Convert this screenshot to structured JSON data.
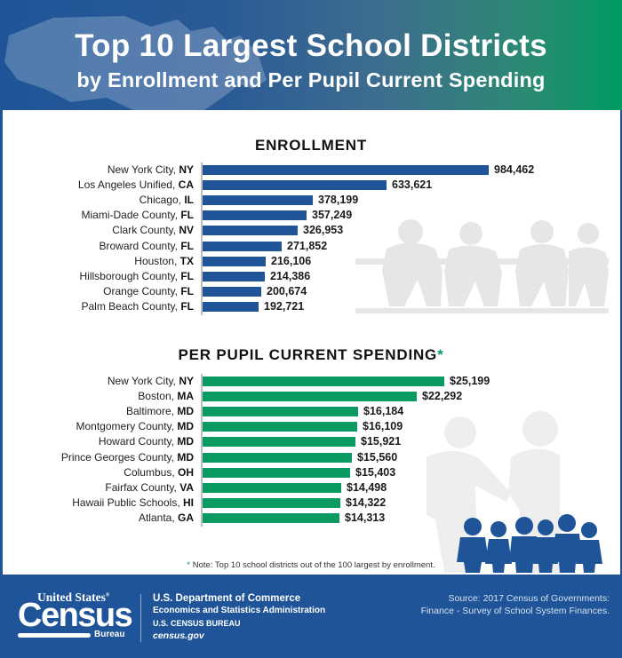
{
  "header": {
    "title": "Top 10 Largest School Districts",
    "subtitle": "by Enrollment and Per Pupil Current Spending"
  },
  "enrollment": {
    "title": "ENROLLMENT",
    "bar_color": "#1f5598",
    "rows": [
      {
        "name": "New York City, ",
        "state": "NY",
        "value": 984462,
        "display": "984,462"
      },
      {
        "name": "Los Angeles Unified, ",
        "state": "CA",
        "value": 633621,
        "display": "633,621"
      },
      {
        "name": "Chicago, ",
        "state": "IL",
        "value": 378199,
        "display": "378,199"
      },
      {
        "name": "Miami-Dade County, ",
        "state": "FL",
        "value": 357249,
        "display": "357,249"
      },
      {
        "name": "Clark County, ",
        "state": "NV",
        "value": 326953,
        "display": "326,953"
      },
      {
        "name": "Broward County, ",
        "state": "FL",
        "value": 271852,
        "display": "271,852"
      },
      {
        "name": "Houston, ",
        "state": "TX",
        "value": 216106,
        "display": "216,106"
      },
      {
        "name": "Hillsborough County, ",
        "state": "FL",
        "value": 214386,
        "display": "214,386"
      },
      {
        "name": "Orange County, ",
        "state": "FL",
        "value": 200674,
        "display": "200,674"
      },
      {
        "name": "Palm Beach County, ",
        "state": "FL",
        "value": 192721,
        "display": "192,721"
      }
    ]
  },
  "spending": {
    "title": "PER PUPIL CURRENT SPENDING",
    "asterisk": "*",
    "bar_color": "#0a9a62",
    "rows": [
      {
        "name": "New York City, ",
        "state": "NY",
        "value": 25199,
        "display": "$25,199"
      },
      {
        "name": "Boston, ",
        "state": "MA",
        "value": 22292,
        "display": "$22,292"
      },
      {
        "name": "Baltimore, ",
        "state": "MD",
        "value": 16184,
        "display": "$16,184"
      },
      {
        "name": "Montgomery County, ",
        "state": "MD",
        "value": 16109,
        "display": "$16,109"
      },
      {
        "name": "Howard County, ",
        "state": "MD",
        "value": 15921,
        "display": "$15,921"
      },
      {
        "name": "Prince Georges County, ",
        "state": "MD",
        "value": 15560,
        "display": "$15,560"
      },
      {
        "name": "Columbus, ",
        "state": "OH",
        "value": 15403,
        "display": "$15,403"
      },
      {
        "name": "Fairfax County, ",
        "state": "VA",
        "value": 14498,
        "display": "$14,498"
      },
      {
        "name": "Hawaii Public Schools, ",
        "state": "HI",
        "value": 14322,
        "display": "$14,322"
      },
      {
        "name": "Atlanta, ",
        "state": "GA",
        "value": 14313,
        "display": "$14,313"
      }
    ]
  },
  "note": {
    "asterisk": "*",
    "text": " Note: Top 10 school districts out of the 100 largest by enrollment."
  },
  "footer": {
    "logo_top": "United States",
    "logo_reg": "®",
    "logo_main": "Census",
    "logo_bottom": "Bureau",
    "dept_line1": "U.S. Department of Commerce",
    "dept_line2": "Economics and Statistics Administration",
    "dept_line3": "U.S. CENSUS BUREAU",
    "dept_line4": "census.gov",
    "source_line1": "Source: 2017 Census of Governments:",
    "source_line2": "Finance - Survey of School System Finances."
  },
  "colors": {
    "header_start": "#1f5598",
    "header_end": "#009a62",
    "enrollment_bar": "#1f5598",
    "spending_bar": "#0a9a62",
    "footer_bg": "#1f5598"
  },
  "chart_data": [
    {
      "type": "bar",
      "orientation": "horizontal",
      "title": "ENROLLMENT",
      "categories": [
        "New York City, NY",
        "Los Angeles Unified, CA",
        "Chicago, IL",
        "Miami-Dade County, FL",
        "Clark County, NV",
        "Broward County, FL",
        "Houston, TX",
        "Hillsborough County, FL",
        "Orange County, FL",
        "Palm Beach County, FL"
      ],
      "values": [
        984462,
        633621,
        378199,
        357249,
        326953,
        271852,
        216106,
        214386,
        200674,
        192721
      ],
      "xlabel": "",
      "ylabel": "",
      "data_labels": true,
      "grid": false
    },
    {
      "type": "bar",
      "orientation": "horizontal",
      "title": "PER PUPIL CURRENT SPENDING*",
      "categories": [
        "New York City, NY",
        "Boston, MA",
        "Baltimore, MD",
        "Montgomery County, MD",
        "Howard County, MD",
        "Prince Georges County, MD",
        "Columbus, OH",
        "Fairfax County, VA",
        "Hawaii Public Schools, HI",
        "Atlanta, GA"
      ],
      "values": [
        25199,
        22292,
        16184,
        16109,
        15921,
        15560,
        15403,
        14498,
        14322,
        14313
      ],
      "units": "USD",
      "xlabel": "",
      "ylabel": "",
      "data_labels": true,
      "grid": false,
      "annotation": "* Note: Top 10 school districts out of the 100 largest by enrollment."
    }
  ]
}
